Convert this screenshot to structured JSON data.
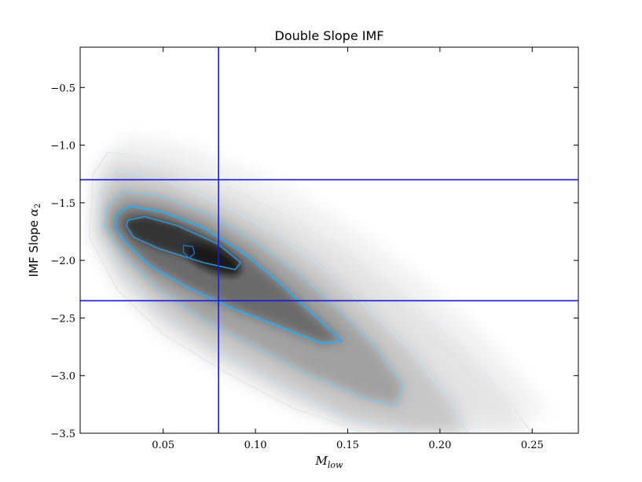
{
  "chart_data": {
    "type": "heatmap",
    "title": "Double Slope IMF",
    "xlabel": "M_low",
    "xlabel_main": "M",
    "xlabel_sub": "low",
    "ylabel": "IMF Slope α₂",
    "ylabel_main": "IMF Slope ",
    "ylabel_greek": "α",
    "ylabel_sub": "2",
    "xlim": [
      0.005,
      0.275
    ],
    "ylim": [
      -3.5,
      -0.15
    ],
    "xticks": [
      0.05,
      0.1,
      0.15,
      0.2,
      0.25
    ],
    "xtick_labels": [
      "0.05",
      "0.10",
      "0.15",
      "0.20",
      "0.25"
    ],
    "yticks": [
      -0.5,
      -1.0,
      -1.5,
      -2.0,
      -2.5,
      -3.0,
      -3.5
    ],
    "ytick_labels": [
      "−0.5",
      "−1.0",
      "−1.5",
      "−2.0",
      "−2.5",
      "−3.0",
      "−3.5"
    ],
    "grid": false,
    "density": {
      "center": [
        0.065,
        -1.92
      ],
      "minor_axis_direction": [
        1,
        0.5
      ],
      "description_levels": 5
    },
    "contours": [
      {
        "name": "level-1",
        "color": "#1e6fd6",
        "width": 1.4,
        "points": [
          [
            0.061,
            -1.87
          ],
          [
            0.066,
            -1.88
          ],
          [
            0.067,
            -1.94
          ],
          [
            0.064,
            -1.98
          ],
          [
            0.061,
            -1.93
          ]
        ]
      },
      {
        "name": "level-2",
        "color": "#2d98da",
        "width": 1.5,
        "points": [
          [
            0.031,
            -1.65
          ],
          [
            0.04,
            -1.62
          ],
          [
            0.058,
            -1.7
          ],
          [
            0.08,
            -1.86
          ],
          [
            0.092,
            -2.02
          ],
          [
            0.089,
            -2.08
          ],
          [
            0.072,
            -2.02
          ],
          [
            0.048,
            -1.9
          ],
          [
            0.034,
            -1.8
          ],
          [
            0.03,
            -1.7
          ]
        ]
      },
      {
        "name": "level-3",
        "color": "#37a8e8",
        "width": 2.2,
        "points": [
          [
            0.025,
            -1.6
          ],
          [
            0.032,
            -1.53
          ],
          [
            0.05,
            -1.58
          ],
          [
            0.072,
            -1.72
          ],
          [
            0.093,
            -1.93
          ],
          [
            0.112,
            -2.18
          ],
          [
            0.13,
            -2.45
          ],
          [
            0.147,
            -2.7
          ],
          [
            0.136,
            -2.72
          ],
          [
            0.112,
            -2.57
          ],
          [
            0.088,
            -2.42
          ],
          [
            0.064,
            -2.24
          ],
          [
            0.043,
            -2.05
          ],
          [
            0.03,
            -1.85
          ],
          [
            0.024,
            -1.72
          ]
        ]
      },
      {
        "name": "level-4",
        "color": "#7fc8f0",
        "width": 1.3,
        "points": [
          [
            0.02,
            -1.52
          ],
          [
            0.028,
            -1.4
          ],
          [
            0.048,
            -1.44
          ],
          [
            0.075,
            -1.6
          ],
          [
            0.1,
            -1.84
          ],
          [
            0.122,
            -2.1
          ],
          [
            0.145,
            -2.42
          ],
          [
            0.165,
            -2.75
          ],
          [
            0.18,
            -3.08
          ],
          [
            0.177,
            -3.26
          ],
          [
            0.16,
            -3.2
          ],
          [
            0.13,
            -3.0
          ],
          [
            0.1,
            -2.75
          ],
          [
            0.07,
            -2.5
          ],
          [
            0.045,
            -2.22
          ],
          [
            0.028,
            -1.95
          ],
          [
            0.018,
            -1.7
          ]
        ]
      },
      {
        "name": "level-5",
        "color": "#bfe3f8",
        "width": 1.2,
        "points": [
          [
            0.016,
            -1.4
          ],
          [
            0.024,
            -1.22
          ],
          [
            0.05,
            -1.3
          ],
          [
            0.08,
            -1.5
          ],
          [
            0.11,
            -1.76
          ],
          [
            0.135,
            -2.05
          ],
          [
            0.16,
            -2.4
          ],
          [
            0.185,
            -2.8
          ],
          [
            0.205,
            -3.2
          ],
          [
            0.215,
            -3.5
          ],
          [
            0.185,
            -3.5
          ],
          [
            0.15,
            -3.38
          ],
          [
            0.115,
            -3.1
          ],
          [
            0.08,
            -2.8
          ],
          [
            0.05,
            -2.48
          ],
          [
            0.028,
            -2.12
          ],
          [
            0.015,
            -1.75
          ]
        ]
      },
      {
        "name": "level-6",
        "color": "#e4e8ee",
        "width": 1.6,
        "points": [
          [
            0.012,
            -1.25
          ],
          [
            0.02,
            -1.06
          ],
          [
            0.05,
            -1.14
          ],
          [
            0.085,
            -1.36
          ],
          [
            0.12,
            -1.64
          ],
          [
            0.15,
            -1.95
          ],
          [
            0.18,
            -2.32
          ],
          [
            0.21,
            -2.74
          ],
          [
            0.235,
            -3.18
          ],
          [
            0.25,
            -3.5
          ],
          [
            0.2,
            -3.5
          ],
          [
            0.16,
            -3.5
          ],
          [
            0.12,
            -3.28
          ],
          [
            0.085,
            -2.98
          ],
          [
            0.05,
            -2.64
          ],
          [
            0.025,
            -2.25
          ],
          [
            0.01,
            -1.8
          ]
        ]
      }
    ],
    "reference_lines": [
      {
        "name": "vline",
        "orientation": "vertical",
        "value": 0.08,
        "color": "#1a1ad6"
      },
      {
        "name": "hline-upper",
        "orientation": "horizontal",
        "value": -1.3,
        "color": "#1a1ad6"
      },
      {
        "name": "hline-lower",
        "orientation": "horizontal",
        "value": -2.35,
        "color": "#1a1ad6"
      }
    ]
  }
}
